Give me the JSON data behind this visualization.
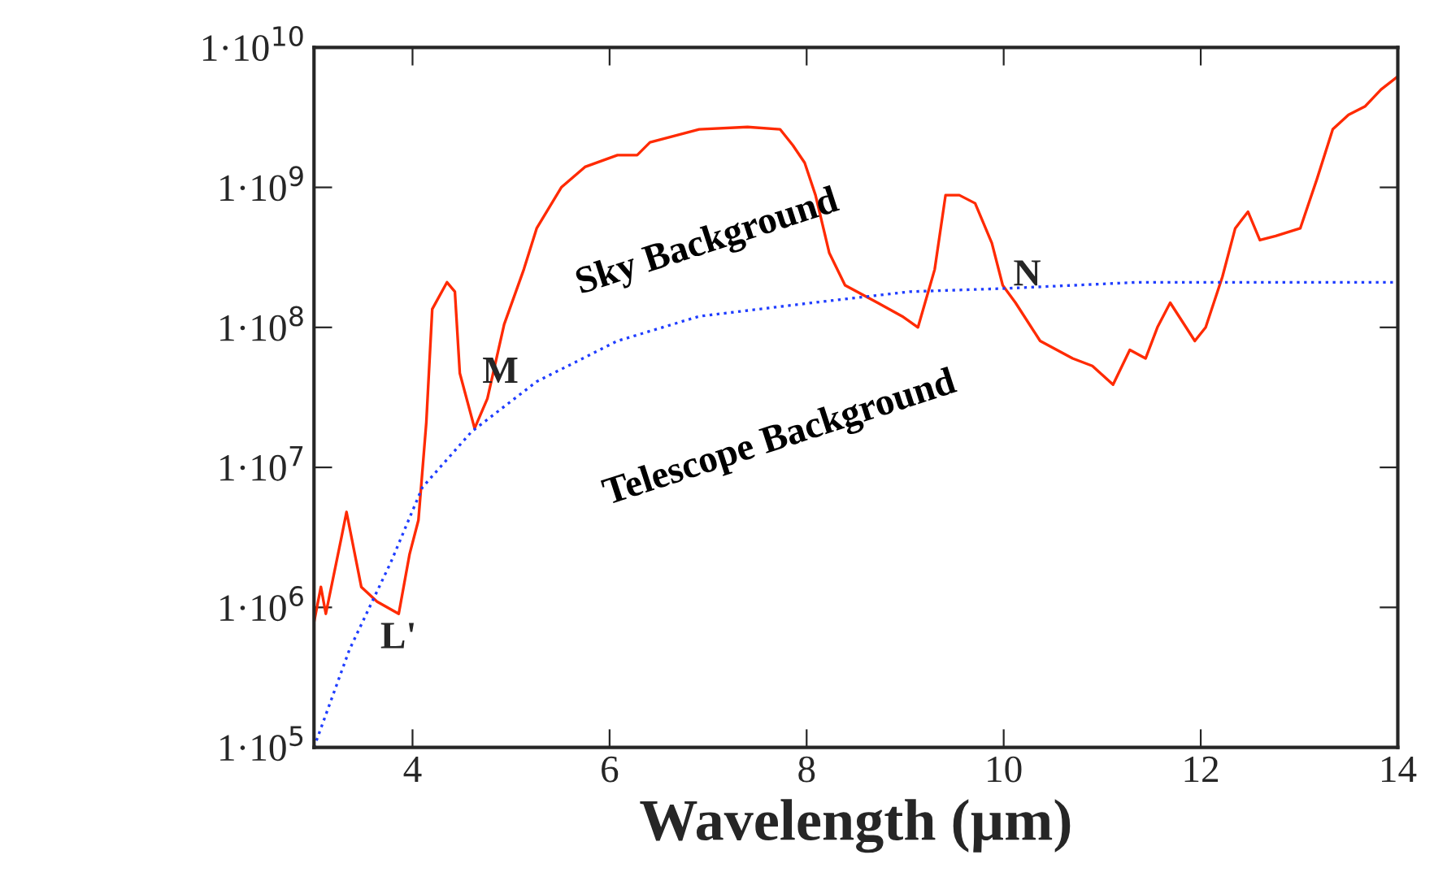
{
  "chart_data": {
    "type": "line",
    "xlabel": "Wavelength (µm)",
    "log": "y",
    "grid": false,
    "legend": false,
    "xlim": [
      3,
      14
    ],
    "xticks": [
      4,
      6,
      8,
      10,
      12,
      14
    ],
    "ylim": [
      100000,
      10000000000
    ],
    "yticks": [
      {
        "value": 100000,
        "label": "1·10$^{5}$"
      },
      {
        "value": 1000000,
        "label": "1·10$^{6}$"
      },
      {
        "value": 10000000,
        "label": "1·10$^{7}$"
      },
      {
        "value": 100000000,
        "label": "1·10$^{8}$"
      },
      {
        "value": 1000000000,
        "label": "1·10$^{9}$"
      },
      {
        "value": 10000000000,
        "label": "1·10$^{10}$"
      }
    ],
    "series": [
      {
        "name": "Sky Background",
        "color": "#ff2a00",
        "line_style": "solid",
        "x": [
          3.0,
          3.07,
          3.12,
          3.28,
          3.33,
          3.48,
          3.64,
          3.86,
          3.97,
          4.06,
          4.14,
          4.2,
          4.35,
          4.43,
          4.48,
          4.63,
          4.76,
          4.93,
          5.13,
          5.26,
          5.51,
          5.75,
          6.08,
          6.28,
          6.41,
          6.91,
          7.4,
          7.73,
          7.86,
          7.98,
          8.09,
          8.23,
          8.39,
          8.72,
          8.97,
          9.13,
          9.3,
          9.41,
          9.55,
          9.71,
          9.88,
          9.99,
          10.12,
          10.37,
          10.7,
          10.9,
          11.11,
          11.28,
          11.44,
          11.56,
          11.69,
          11.94,
          12.05,
          12.22,
          12.35,
          12.48,
          12.6,
          12.76,
          13.01,
          13.18,
          13.34,
          13.5,
          13.67,
          13.83,
          14.0
        ],
        "values": [
          780000,
          1400000,
          900000,
          3200000,
          4800000,
          1400000,
          1100000,
          900000,
          2400000,
          4200000,
          21000000,
          135000000,
          210000000,
          180000000,
          47000000,
          19000000,
          31000000,
          105000000,
          260000000,
          510000000,
          1000000000,
          1400000000,
          1700000000,
          1700000000,
          2100000000,
          2600000000,
          2700000000,
          2600000000,
          2000000000,
          1500000000,
          880000000,
          340000000,
          200000000,
          150000000,
          120000000,
          100000000,
          260000000,
          880000000,
          880000000,
          770000000,
          400000000,
          200000000,
          150000000,
          80000000,
          60000000,
          53000000,
          39000000,
          69000000,
          60000000,
          100000000,
          150000000,
          80000000,
          100000000,
          230000000,
          510000000,
          670000000,
          420000000,
          450000000,
          510000000,
          1150000000,
          2600000000,
          3300000000,
          3800000000,
          5000000000,
          6200000000
        ]
      },
      {
        "name": "Telescope Background",
        "color": "#1f3dff",
        "line_style": "dotted",
        "x": [
          3.0,
          3.36,
          3.78,
          4.1,
          4.6,
          5.26,
          6.08,
          6.91,
          8.06,
          9.05,
          10.04,
          11.36,
          14.0
        ],
        "values": [
          100000,
          500000,
          2100000,
          7200000,
          18000000,
          41000000,
          80000000,
          120000000,
          150000000,
          180000000,
          190000000,
          210000000,
          210000000
        ]
      }
    ],
    "annotations": [
      "L'",
      "M",
      "N"
    ]
  }
}
